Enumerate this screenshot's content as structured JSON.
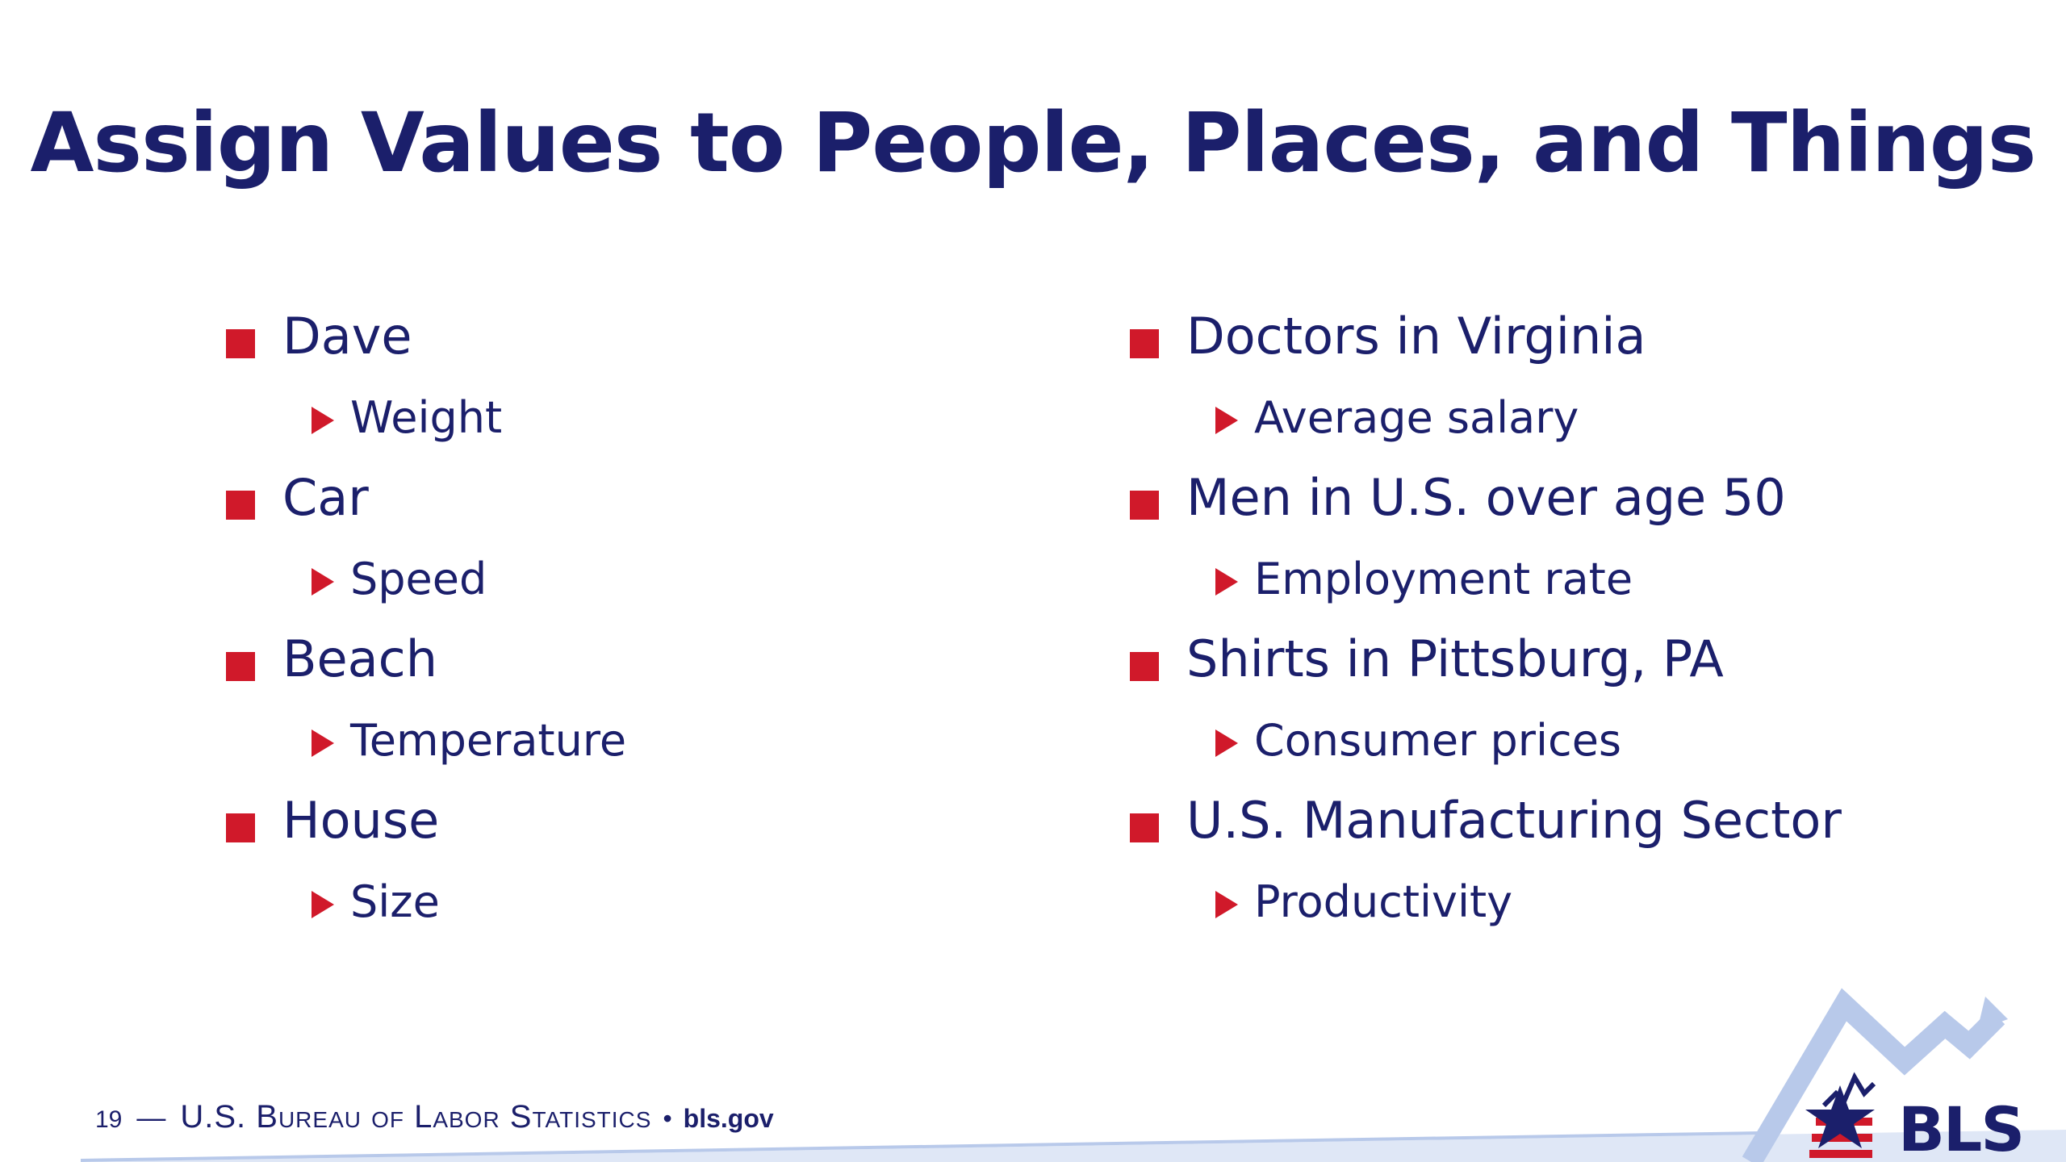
{
  "slide": {
    "title": "Assign Values to People, Places, and Things",
    "left_column": [
      {
        "label": "Dave",
        "sub": "Weight"
      },
      {
        "label": "Car",
        "sub": "Speed"
      },
      {
        "label": "Beach",
        "sub": "Temperature"
      },
      {
        "label": "House",
        "sub": "Size"
      }
    ],
    "right_column": [
      {
        "label": "Doctors in Virginia",
        "sub": "Average salary"
      },
      {
        "label": "Men in U.S. over age 50",
        "sub": "Employment rate"
      },
      {
        "label": "Shirts in Pittsburg, PA",
        "sub": "Consumer prices"
      },
      {
        "label": "U.S. Manufacturing Sector",
        "sub": "Productivity"
      }
    ]
  },
  "footer": {
    "page_number": "19",
    "dash": "—",
    "organization": "U.S. Bureau of Labor Statistics",
    "separator": "•",
    "website": "bls.gov"
  },
  "logo": {
    "text": "BLS",
    "icon": "bls-star-chart-logo"
  },
  "colors": {
    "navy": "#1b1f6b",
    "red": "#d0192a",
    "light_blue": "#b8c9ea"
  }
}
